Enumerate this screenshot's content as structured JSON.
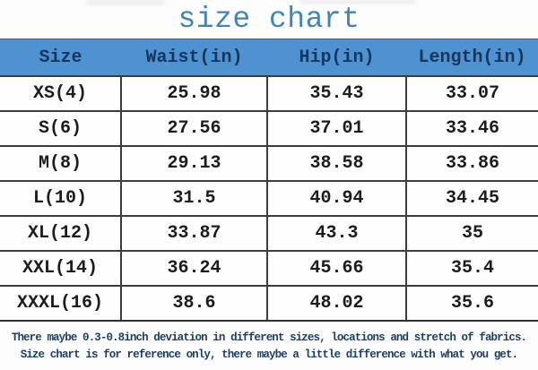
{
  "title": "size chart",
  "table": {
    "headers": [
      "Size",
      "Waist(in)",
      "Hip(in)",
      "Length(in)"
    ],
    "rows": [
      [
        "XS(4)",
        "25.98",
        "35.43",
        "33.07"
      ],
      [
        "S(6)",
        "27.56",
        "37.01",
        "33.46"
      ],
      [
        "M(8)",
        "29.13",
        "38.58",
        "33.86"
      ],
      [
        "L(10)",
        "31.5",
        "40.94",
        "34.45"
      ],
      [
        "XL(12)",
        "33.87",
        "43.3",
        "35"
      ],
      [
        "XXL(14)",
        "36.24",
        "45.66",
        "35.4"
      ],
      [
        "XXXL(16)",
        "38.6",
        "48.02",
        "35.6"
      ]
    ]
  },
  "footer": {
    "line1": "There maybe 0.3-0.8inch deviation in different sizes, locations and stretch of fabrics.",
    "line2": "Size chart is for reference only, there maybe a little difference with what you get."
  },
  "colors": {
    "header_bg": "#4e92d1",
    "header_text": "#14365f",
    "title_text": "#4285b4",
    "body_text": "#1c1c1c",
    "footer_text": "#1c3e66",
    "border": "#3d3d3d"
  },
  "chart_data": {
    "type": "table",
    "title": "size chart",
    "columns": [
      "Size",
      "Waist(in)",
      "Hip(in)",
      "Length(in)"
    ],
    "rows": [
      [
        "XS(4)",
        25.98,
        35.43,
        33.07
      ],
      [
        "S(6)",
        27.56,
        37.01,
        33.46
      ],
      [
        "M(8)",
        29.13,
        38.58,
        33.86
      ],
      [
        "L(10)",
        31.5,
        40.94,
        34.45
      ],
      [
        "XL(12)",
        33.87,
        43.3,
        35
      ],
      [
        "XXL(14)",
        36.24,
        45.66,
        35.4
      ],
      [
        "XXXL(16)",
        38.6,
        48.02,
        35.6
      ]
    ],
    "notes": [
      "There maybe 0.3-0.8inch deviation in different sizes, locations and stretch of fabrics.",
      "Size chart is for reference only, there maybe a little difference with what you get."
    ]
  }
}
